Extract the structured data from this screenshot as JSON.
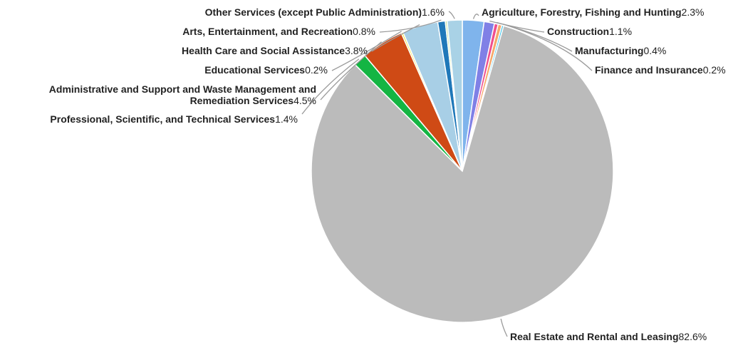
{
  "chart_data": {
    "type": "pie",
    "title": "",
    "slices": [
      {
        "label": "Agriculture, Forestry, Fishing and Hunting",
        "pct_text": "2.3%",
        "value": 2.3,
        "color": "#7fb4ec"
      },
      {
        "label": "Construction",
        "pct_text": "1.1%",
        "value": 1.1,
        "color": "#8080e6"
      },
      {
        "label": "Manufacturing",
        "pct_text": "0.4%",
        "value": 0.4,
        "color": "#ef4f8e"
      },
      {
        "label": "",
        "pct_text": "",
        "value": 0.4,
        "color": "#f6a86a"
      },
      {
        "label": "Finance and Insurance",
        "pct_text": "0.2%",
        "value": 0.2,
        "color": "#33c2e8"
      },
      {
        "label": "Real Estate and Rental and Leasing",
        "pct_text": "82.6%",
        "value": 82.6,
        "color": "#bbbbbb"
      },
      {
        "label": "Professional, Scientific, and Technical Services",
        "pct_text": "1.4%",
        "value": 1.4,
        "color": "#14b543"
      },
      {
        "label": "Administrative and Support and Waste Management and Remediation Services",
        "pct_text": "4.5%",
        "value": 4.5,
        "color": "#cf4a15"
      },
      {
        "label": "Educational Services",
        "pct_text": "0.2%",
        "value": 0.2,
        "color": "#f4e24e"
      },
      {
        "label": "Health Care and Social Assistance",
        "pct_text": "3.8%",
        "value": 3.8,
        "color": "#a8cfe6"
      },
      {
        "label": "Arts, Entertainment, and Recreation",
        "pct_text": "0.8%",
        "value": 0.8,
        "color": "#1f78b9"
      },
      {
        "label": "",
        "pct_text": "",
        "value": 0.2,
        "color": "#c6e4a0"
      },
      {
        "label": "Other Services (except Public Administration)",
        "pct_text": "1.6%",
        "value": 1.6,
        "color": "#a9d2e6"
      }
    ]
  }
}
